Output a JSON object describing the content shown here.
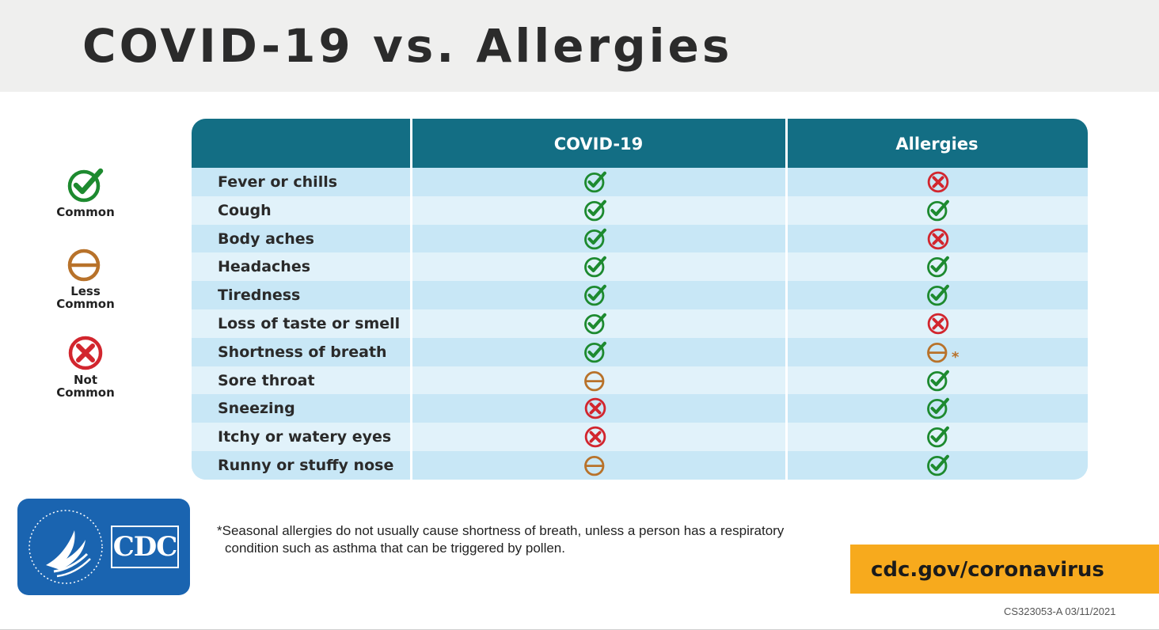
{
  "title": "COVID-19 vs. Allergies",
  "legend": [
    {
      "status": "common",
      "label": "Common"
    },
    {
      "status": "less",
      "label": "Less\nCommon"
    },
    {
      "status": "not",
      "label": "Not\nCommon"
    }
  ],
  "table": {
    "headers": [
      "",
      "COVID-19",
      "Allergies"
    ],
    "rows": [
      {
        "symptom": "Fever or chills",
        "covid": "common",
        "allergies": "not"
      },
      {
        "symptom": "Cough",
        "covid": "common",
        "allergies": "common"
      },
      {
        "symptom": "Body aches",
        "covid": "common",
        "allergies": "not"
      },
      {
        "symptom": "Headaches",
        "covid": "common",
        "allergies": "common"
      },
      {
        "symptom": "Tiredness",
        "covid": "common",
        "allergies": "common"
      },
      {
        "symptom": "Loss of taste or smell",
        "covid": "common",
        "allergies": "not"
      },
      {
        "symptom": "Shortness of breath",
        "covid": "common",
        "allergies": "less",
        "allergies_note": "*"
      },
      {
        "symptom": "Sore throat",
        "covid": "less",
        "allergies": "common"
      },
      {
        "symptom": "Sneezing",
        "covid": "not",
        "allergies": "common"
      },
      {
        "symptom": "Itchy or watery eyes",
        "covid": "not",
        "allergies": "common"
      },
      {
        "symptom": "Runny or stuffy nose",
        "covid": "less",
        "allergies": "common"
      }
    ]
  },
  "footnote": {
    "line1": "*Seasonal allergies do not usually cause shortness of breath, unless a person has a respiratory",
    "line2": "condition such as asthma that can be triggered by pollen."
  },
  "logo": {
    "text": "CDC"
  },
  "url": "cdc.gov/coronavirus",
  "doc_id": "CS323053-A 03/11/2021",
  "colors": {
    "common": "#1d8a2f",
    "less": "#b8722a",
    "not": "#d2262e",
    "header": "#136e84",
    "accent": "#f7aa1d",
    "logo": "#1a64b0"
  },
  "icons": {
    "common": "check-circle-icon",
    "less": "minus-circle-icon",
    "not": "x-circle-icon"
  }
}
